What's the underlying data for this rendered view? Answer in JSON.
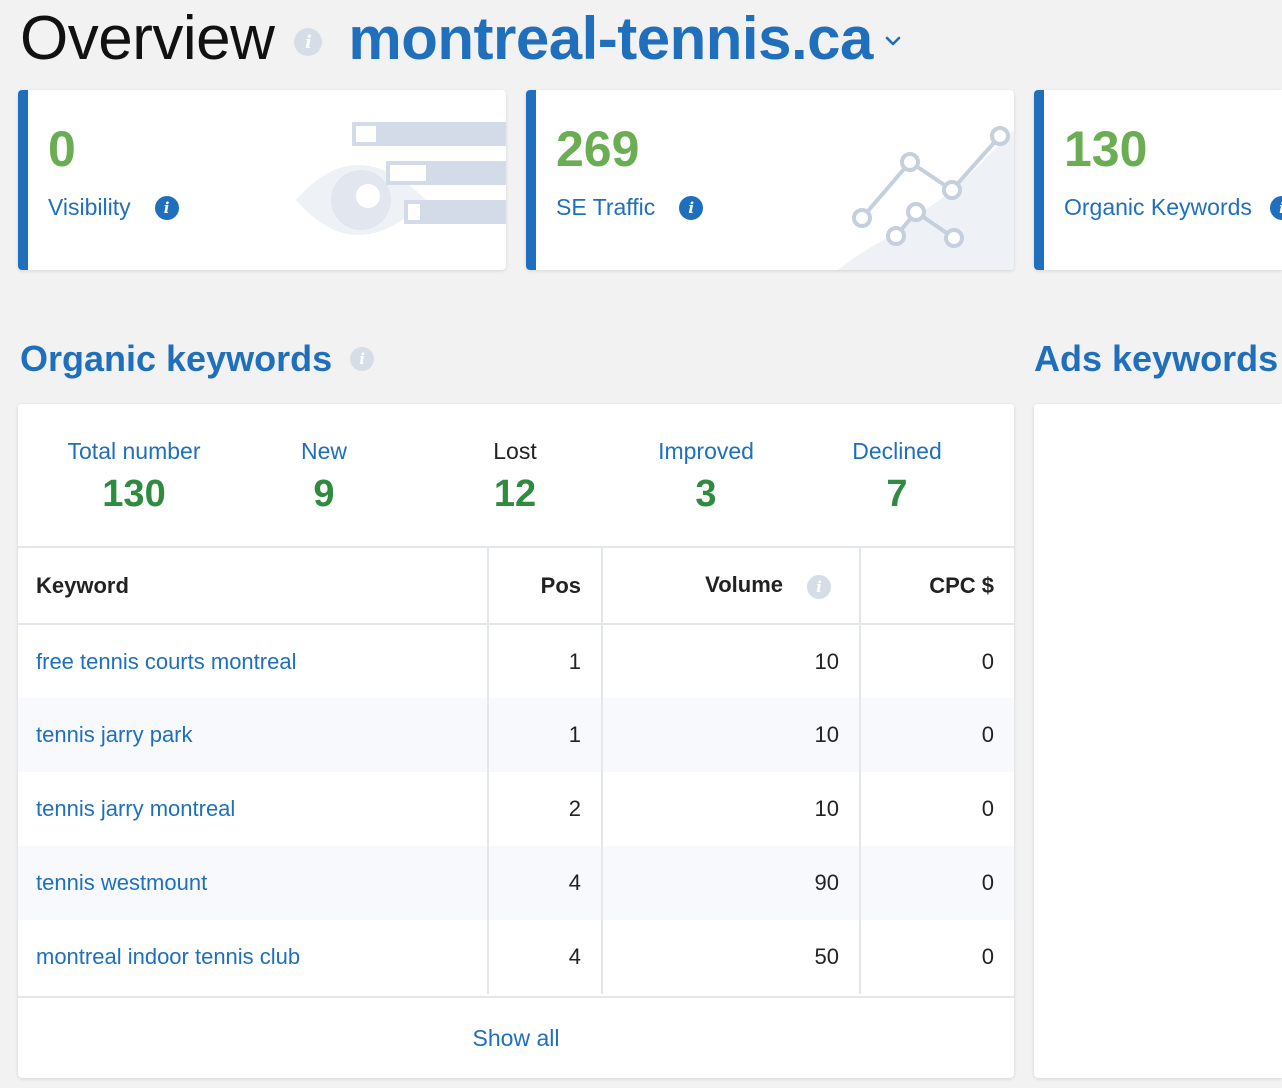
{
  "header": {
    "title": "Overview",
    "domain": "montreal-tennis.ca"
  },
  "cards": [
    {
      "value": "0",
      "label": "Visibility"
    },
    {
      "value": "269",
      "label": "SE Traffic"
    },
    {
      "value": "130",
      "label": "Organic Keywords"
    }
  ],
  "sections": {
    "organic_title": "Organic keywords",
    "ads_title": "Ads keywords"
  },
  "stats": [
    {
      "label": "Total number",
      "value": "130"
    },
    {
      "label": "New",
      "value": "9"
    },
    {
      "label": "Lost",
      "value": "12"
    },
    {
      "label": "Improved",
      "value": "3"
    },
    {
      "label": "Declined",
      "value": "7"
    }
  ],
  "table": {
    "headers": {
      "keyword": "Keyword",
      "pos": "Pos",
      "volume": "Volume",
      "cpc": "CPC $"
    },
    "rows": [
      {
        "keyword": "free tennis courts montreal",
        "pos": "1",
        "volume": "10",
        "cpc": "0"
      },
      {
        "keyword": "tennis jarry park",
        "pos": "1",
        "volume": "10",
        "cpc": "0"
      },
      {
        "keyword": "tennis jarry montreal",
        "pos": "2",
        "volume": "10",
        "cpc": "0"
      },
      {
        "keyword": "tennis westmount",
        "pos": "4",
        "volume": "90",
        "cpc": "0"
      },
      {
        "keyword": "montreal indoor tennis club",
        "pos": "4",
        "volume": "50",
        "cpc": "0"
      }
    ],
    "show_all": "Show all"
  },
  "colors": {
    "accent": "#1f6fbd",
    "metric_green": "#6aad52",
    "stat_green": "#2e8b3f"
  }
}
